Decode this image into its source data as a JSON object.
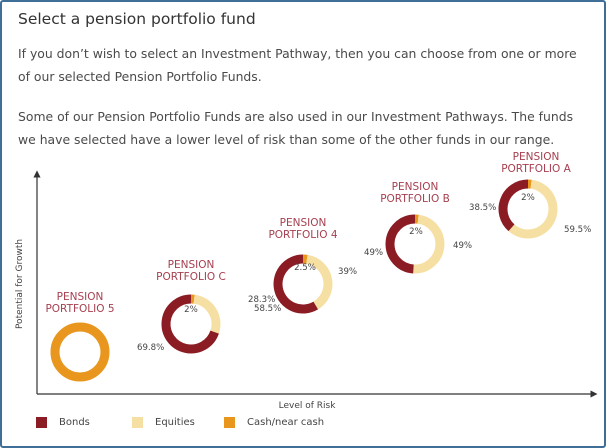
{
  "page": {
    "title": "Select a pension portfolio fund",
    "paragraph1": "If you don’t wish to select an Investment Pathway, then you can choose from one or more of our selected Pension Portfolio Funds.",
    "paragraph2": "Some of our Pension Portfolio Funds are also used in our Investment Pathways. The funds we have selected have a lower level of risk than some of the other funds in our range."
  },
  "colors": {
    "bonds": "#8b1c24",
    "equities": "#f6dfa2",
    "cash": "#e8961e",
    "title_text": "#a63f4f",
    "frame": "#3f6f96"
  },
  "chart_data": {
    "type": "pie",
    "subtype": "donut-positioned",
    "xlabel": "Level of Risk",
    "ylabel": "Potential for Growth",
    "legend": [
      {
        "key": "bonds",
        "label": "Bonds"
      },
      {
        "key": "equities",
        "label": "Equities"
      },
      {
        "key": "cash",
        "label": "Cash/near cash"
      }
    ],
    "series": [
      {
        "name_line1": "PENSION",
        "name_line2": "PORTFOLIO 5",
        "bonds": 0,
        "equities": 0,
        "cash": 100,
        "label_bonds": "",
        "label_equities": "",
        "label_cash": ""
      },
      {
        "name_line1": "PENSION",
        "name_line2": "PORTFOLIO C",
        "bonds": 69.8,
        "equities": 28.3,
        "cash": 2,
        "label_bonds": "69.8%",
        "label_equities": "28.3%",
        "label_cash": "2%"
      },
      {
        "name_line1": "PENSION",
        "name_line2": "PORTFOLIO 4",
        "bonds": 58.5,
        "equities": 39,
        "cash": 2.5,
        "label_bonds": "58.5%",
        "label_equities": "39%",
        "label_cash": "2.5%"
      },
      {
        "name_line1": "PENSION",
        "name_line2": "PORTFOLIO B",
        "bonds": 49,
        "equities": 49,
        "cash": 2,
        "label_bonds": "49%",
        "label_equities": "49%",
        "label_cash": "2%"
      },
      {
        "name_line1": "PENSION",
        "name_line2": "PORTFOLIO A",
        "bonds": 38.5,
        "equities": 59.5,
        "cash": 2,
        "label_bonds": "38.5%",
        "label_equities": "59.5%",
        "label_cash": "2%"
      }
    ]
  }
}
